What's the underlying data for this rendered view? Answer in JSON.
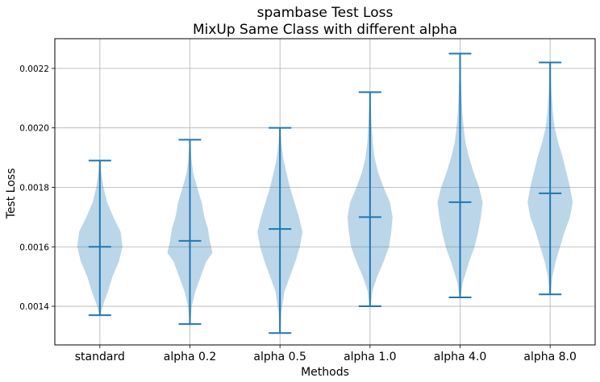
{
  "chart_data": {
    "type": "violin",
    "title_line1": "spambase Test Loss",
    "title_line2": "MixUp Same Class with different alpha",
    "xlabel": "Methods",
    "ylabel": "Test Loss",
    "ylim": [
      0.00127,
      0.0023
    ],
    "yticks": [
      0.0014,
      0.0016,
      0.0018,
      0.002,
      0.0022
    ],
    "ytick_labels": [
      "0.0014",
      "0.0016",
      "0.0018",
      "0.0020",
      "0.0022"
    ],
    "grid": true,
    "color": "#1f77b4",
    "fill_color": "#1f77b4",
    "fill_alpha": 0.3,
    "categories": [
      "standard",
      "alpha 0.2",
      "alpha 0.5",
      "alpha 1.0",
      "alpha 4.0",
      "alpha 8.0"
    ],
    "series": [
      {
        "min": 0.00137,
        "max": 0.00189,
        "median": 0.0016,
        "density": [
          [
            0.00137,
            0.01
          ],
          [
            0.0014,
            0.06
          ],
          [
            0.00145,
            0.18
          ],
          [
            0.0015,
            0.28
          ],
          [
            0.00155,
            0.42
          ],
          [
            0.0016,
            0.5
          ],
          [
            0.00165,
            0.46
          ],
          [
            0.0017,
            0.3
          ],
          [
            0.00175,
            0.16
          ],
          [
            0.0018,
            0.08
          ],
          [
            0.00185,
            0.03
          ],
          [
            0.00189,
            0.01
          ]
        ]
      },
      {
        "min": 0.00134,
        "max": 0.00196,
        "median": 0.00162,
        "density": [
          [
            0.00134,
            0.01
          ],
          [
            0.0014,
            0.04
          ],
          [
            0.00145,
            0.12
          ],
          [
            0.0015,
            0.24
          ],
          [
            0.00155,
            0.36
          ],
          [
            0.00158,
            0.5
          ],
          [
            0.00162,
            0.44
          ],
          [
            0.00166,
            0.4
          ],
          [
            0.0017,
            0.32
          ],
          [
            0.00175,
            0.26
          ],
          [
            0.0018,
            0.16
          ],
          [
            0.00185,
            0.07
          ],
          [
            0.0019,
            0.03
          ],
          [
            0.00196,
            0.01
          ]
        ]
      },
      {
        "min": 0.00131,
        "max": 0.002,
        "median": 0.00166,
        "density": [
          [
            0.00131,
            0.01
          ],
          [
            0.00138,
            0.03
          ],
          [
            0.00145,
            0.1
          ],
          [
            0.0015,
            0.22
          ],
          [
            0.00155,
            0.34
          ],
          [
            0.0016,
            0.44
          ],
          [
            0.00165,
            0.5
          ],
          [
            0.0017,
            0.42
          ],
          [
            0.00175,
            0.32
          ],
          [
            0.0018,
            0.22
          ],
          [
            0.00185,
            0.14
          ],
          [
            0.0019,
            0.07
          ],
          [
            0.00195,
            0.03
          ],
          [
            0.002,
            0.01
          ]
        ]
      },
      {
        "min": 0.0014,
        "max": 0.00212,
        "median": 0.0017,
        "density": [
          [
            0.0014,
            0.01
          ],
          [
            0.00145,
            0.05
          ],
          [
            0.0015,
            0.16
          ],
          [
            0.00155,
            0.3
          ],
          [
            0.0016,
            0.42
          ],
          [
            0.00165,
            0.47
          ],
          [
            0.0017,
            0.5
          ],
          [
            0.00175,
            0.44
          ],
          [
            0.0018,
            0.3
          ],
          [
            0.00185,
            0.18
          ],
          [
            0.0019,
            0.1
          ],
          [
            0.00195,
            0.06
          ],
          [
            0.002,
            0.04
          ],
          [
            0.00206,
            0.02
          ],
          [
            0.00212,
            0.01
          ]
        ]
      },
      {
        "min": 0.00143,
        "max": 0.00225,
        "median": 0.00175,
        "density": [
          [
            0.00143,
            0.01
          ],
          [
            0.00148,
            0.06
          ],
          [
            0.00155,
            0.2
          ],
          [
            0.0016,
            0.32
          ],
          [
            0.00165,
            0.4
          ],
          [
            0.0017,
            0.46
          ],
          [
            0.00175,
            0.5
          ],
          [
            0.0018,
            0.42
          ],
          [
            0.00185,
            0.3
          ],
          [
            0.0019,
            0.2
          ],
          [
            0.00195,
            0.12
          ],
          [
            0.002,
            0.08
          ],
          [
            0.00205,
            0.05
          ],
          [
            0.00212,
            0.03
          ],
          [
            0.0022,
            0.01
          ],
          [
            0.00225,
            0.0
          ]
        ]
      },
      {
        "min": 0.00144,
        "max": 0.00222,
        "median": 0.00178,
        "density": [
          [
            0.00144,
            0.01
          ],
          [
            0.0015,
            0.05
          ],
          [
            0.00155,
            0.12
          ],
          [
            0.0016,
            0.22
          ],
          [
            0.00165,
            0.32
          ],
          [
            0.0017,
            0.44
          ],
          [
            0.00175,
            0.5
          ],
          [
            0.0018,
            0.44
          ],
          [
            0.00185,
            0.36
          ],
          [
            0.0019,
            0.28
          ],
          [
            0.00195,
            0.18
          ],
          [
            0.002,
            0.1
          ],
          [
            0.00205,
            0.06
          ],
          [
            0.00212,
            0.03
          ],
          [
            0.00222,
            0.0
          ]
        ]
      }
    ]
  }
}
